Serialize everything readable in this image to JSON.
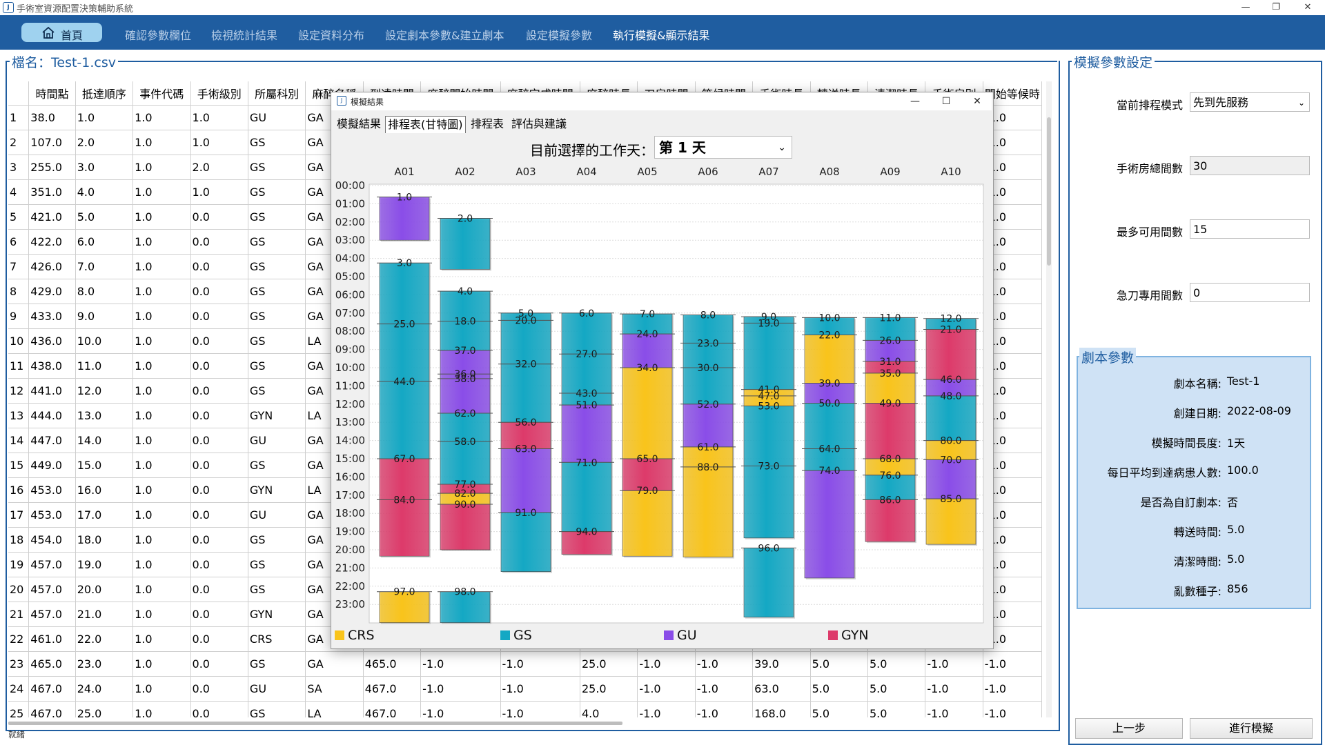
{
  "app": {
    "title": "手術室資源配置決策輔助系統",
    "icon": "J"
  },
  "window_controls": {
    "minimize": "—",
    "maximize": "❐",
    "close": "✕"
  },
  "nav": {
    "home": "首頁",
    "items": [
      "確認參數欄位",
      "檢視統計結果",
      "設定資料分布",
      "設定劇本參數&建立劇本",
      "設定模擬參數",
      "執行模擬&顯示結果"
    ],
    "active_index": 5
  },
  "left": {
    "file_title": "檔名：Test-1.csv",
    "status": "就緒"
  },
  "table": {
    "headers": [
      "",
      "時間點",
      "抵達順序",
      "事件代碼",
      "手術級別",
      "所屬科別",
      "麻醉名稱",
      "到達時間",
      "麻醉開始時間",
      "麻醉完成時間",
      "麻醉時長",
      "刀房時間",
      "等候時間",
      "手術時長",
      "轉送時長",
      "清潔時長",
      "手術房別",
      "開始等候時"
    ],
    "rows": [
      [
        "1",
        "38.0",
        "1.0",
        "1.0",
        "1.0",
        "GU",
        "GA",
        "",
        "",
        "",
        "",
        "",
        "",
        "",
        "",
        "",
        "",
        "-1.0"
      ],
      [
        "2",
        "107.0",
        "2.0",
        "1.0",
        "1.0",
        "GS",
        "GA",
        "",
        "",
        "",
        "",
        "",
        "",
        "",
        "",
        "",
        "",
        "-1.0"
      ],
      [
        "3",
        "255.0",
        "3.0",
        "1.0",
        "2.0",
        "GS",
        "GA",
        "",
        "",
        "",
        "",
        "",
        "",
        "",
        "",
        "",
        "",
        "-1.0"
      ],
      [
        "4",
        "351.0",
        "4.0",
        "1.0",
        "1.0",
        "GS",
        "GA",
        "",
        "",
        "",
        "",
        "",
        "",
        "",
        "",
        "",
        "",
        "-1.0"
      ],
      [
        "5",
        "421.0",
        "5.0",
        "1.0",
        "0.0",
        "GS",
        "GA",
        "",
        "",
        "",
        "",
        "",
        "",
        "",
        "",
        "",
        "",
        "-1.0"
      ],
      [
        "6",
        "422.0",
        "6.0",
        "1.0",
        "0.0",
        "GS",
        "GA",
        "",
        "",
        "",
        "",
        "",
        "",
        "",
        "",
        "",
        "",
        "-1.0"
      ],
      [
        "7",
        "426.0",
        "7.0",
        "1.0",
        "0.0",
        "GS",
        "GA",
        "",
        "",
        "",
        "",
        "",
        "",
        "",
        "",
        "",
        "",
        "-1.0"
      ],
      [
        "8",
        "429.0",
        "8.0",
        "1.0",
        "0.0",
        "GS",
        "GA",
        "",
        "",
        "",
        "",
        "",
        "",
        "",
        "",
        "",
        "",
        "-1.0"
      ],
      [
        "9",
        "433.0",
        "9.0",
        "1.0",
        "0.0",
        "GS",
        "GA",
        "",
        "",
        "",
        "",
        "",
        "",
        "",
        "",
        "",
        "",
        "-1.0"
      ],
      [
        "10",
        "436.0",
        "10.0",
        "1.0",
        "0.0",
        "GS",
        "LA",
        "",
        "",
        "",
        "",
        "",
        "",
        "",
        "",
        "",
        "",
        "-1.0"
      ],
      [
        "11",
        "438.0",
        "11.0",
        "1.0",
        "0.0",
        "GS",
        "GA",
        "",
        "",
        "",
        "",
        "",
        "",
        "",
        "",
        "",
        "",
        "-1.0"
      ],
      [
        "12",
        "441.0",
        "12.0",
        "1.0",
        "0.0",
        "GS",
        "GA",
        "",
        "",
        "",
        "",
        "",
        "",
        "",
        "",
        "",
        "",
        "-1.0"
      ],
      [
        "13",
        "444.0",
        "13.0",
        "1.0",
        "0.0",
        "GYN",
        "LA",
        "",
        "",
        "",
        "",
        "",
        "",
        "",
        "",
        "",
        "",
        "-1.0"
      ],
      [
        "14",
        "447.0",
        "14.0",
        "1.0",
        "0.0",
        "GU",
        "GA",
        "",
        "",
        "",
        "",
        "",
        "",
        "",
        "",
        "",
        "",
        "-1.0"
      ],
      [
        "15",
        "449.0",
        "15.0",
        "1.0",
        "0.0",
        "GS",
        "GA",
        "",
        "",
        "",
        "",
        "",
        "",
        "",
        "",
        "",
        "",
        "-1.0"
      ],
      [
        "16",
        "453.0",
        "16.0",
        "1.0",
        "0.0",
        "GYN",
        "LA",
        "",
        "",
        "",
        "",
        "",
        "",
        "",
        "",
        "",
        "",
        "-1.0"
      ],
      [
        "17",
        "453.0",
        "17.0",
        "1.0",
        "0.0",
        "GU",
        "GA",
        "",
        "",
        "",
        "",
        "",
        "",
        "",
        "",
        "",
        "",
        "-1.0"
      ],
      [
        "18",
        "454.0",
        "18.0",
        "1.0",
        "0.0",
        "GS",
        "GA",
        "",
        "",
        "",
        "",
        "",
        "",
        "",
        "",
        "",
        "",
        "-1.0"
      ],
      [
        "19",
        "457.0",
        "19.0",
        "1.0",
        "0.0",
        "GS",
        "GA",
        "",
        "",
        "",
        "",
        "",
        "",
        "",
        "",
        "",
        "",
        "-1.0"
      ],
      [
        "20",
        "457.0",
        "20.0",
        "1.0",
        "0.0",
        "GS",
        "GA",
        "",
        "",
        "",
        "",
        "",
        "",
        "",
        "",
        "",
        "",
        "-1.0"
      ],
      [
        "21",
        "457.0",
        "21.0",
        "1.0",
        "0.0",
        "GYN",
        "GA",
        "",
        "",
        "",
        "",
        "",
        "",
        "",
        "",
        "",
        "",
        "-1.0"
      ],
      [
        "22",
        "461.0",
        "22.0",
        "1.0",
        "0.0",
        "CRS",
        "GA",
        "",
        "",
        "",
        "",
        "",
        "",
        "",
        "",
        "",
        "",
        "-1.0"
      ],
      [
        "23",
        "465.0",
        "23.0",
        "1.0",
        "0.0",
        "GS",
        "GA",
        "465.0",
        "-1.0",
        "-1.0",
        "25.0",
        "-1.0",
        "-1.0",
        "39.0",
        "5.0",
        "5.0",
        "-1.0",
        "-1.0"
      ],
      [
        "24",
        "467.0",
        "24.0",
        "1.0",
        "0.0",
        "GU",
        "SA",
        "467.0",
        "-1.0",
        "-1.0",
        "25.0",
        "-1.0",
        "-1.0",
        "63.0",
        "5.0",
        "5.0",
        "-1.0",
        "-1.0"
      ],
      [
        "25",
        "467.0",
        "25.0",
        "1.0",
        "0.0",
        "GS",
        "LA",
        "467.0",
        "-1.0",
        "-1.0",
        "4.0",
        "-1.0",
        "-1.0",
        "168.0",
        "5.0",
        "5.0",
        "-1.0",
        "-1.0"
      ]
    ]
  },
  "right": {
    "title": "模擬參數設定",
    "mode_label": "當前排程模式",
    "mode_value": "先到先服務",
    "rooms_label": "手術房總間數",
    "rooms_value": "30",
    "max_label": "最多可用間數",
    "max_value": "15",
    "emerg_label": "急刀專用間數",
    "emerg_value": "0",
    "script_title": "劇本參數",
    "script": [
      {
        "label": "劇本名稱:",
        "value": "Test-1"
      },
      {
        "label": "創建日期:",
        "value": "2022-08-09"
      },
      {
        "label": "模擬時間長度:",
        "value": "1天"
      },
      {
        "label": "每日平均到達病患人數:",
        "value": "100.0"
      },
      {
        "label": "是否為自訂劇本:",
        "value": "否"
      },
      {
        "label": "轉送時間:",
        "value": "5.0"
      },
      {
        "label": "清潔時間:",
        "value": "5.0"
      },
      {
        "label": "亂數種子:",
        "value": "856"
      }
    ],
    "prev_button": "上一步",
    "run_button": "進行模擬"
  },
  "modal": {
    "title": "模擬結果",
    "tabs": [
      "模擬結果",
      "排程表(甘特圖)",
      "排程表",
      "評估與建議"
    ],
    "selected_tab": 1,
    "day_label": "目前選擇的工作天：",
    "day_value": "第 1 天"
  },
  "chart_data": {
    "type": "gantt",
    "rooms": [
      "A01",
      "A02",
      "A03",
      "A04",
      "A05",
      "A06",
      "A07",
      "A08",
      "A09",
      "A10"
    ],
    "y_ticks": [
      "00:00",
      "01:00",
      "02:00",
      "03:00",
      "04:00",
      "05:00",
      "06:00",
      "07:00",
      "08:00",
      "09:00",
      "10:00",
      "11:00",
      "12:00",
      "13:00",
      "14:00",
      "15:00",
      "16:00",
      "17:00",
      "18:00",
      "19:00",
      "20:00",
      "21:00",
      "22:00",
      "23:00"
    ],
    "ylim_hours": [
      0,
      24
    ],
    "grid": true,
    "legend_position": "bottom",
    "categories": [
      {
        "name": "CRS",
        "color": "#f9c41b"
      },
      {
        "name": "GS",
        "color": "#14a8c4"
      },
      {
        "name": "GU",
        "color": "#8a4de8"
      },
      {
        "name": "GYN",
        "color": "#dd3a6a"
      }
    ],
    "bars": [
      {
        "room": "A01",
        "label": "1.0",
        "cat": "GU",
        "start": 0.63,
        "end": 3.0
      },
      {
        "room": "A01",
        "label": "3.0",
        "cat": "GS",
        "start": 4.25,
        "end": 7.6
      },
      {
        "room": "A01",
        "label": "25.0",
        "cat": "GS",
        "start": 7.6,
        "end": 10.75
      },
      {
        "room": "A01",
        "label": "44.0",
        "cat": "GS",
        "start": 10.75,
        "end": 15.0
      },
      {
        "room": "A01",
        "label": "67.0",
        "cat": "GYN",
        "start": 15.0,
        "end": 17.25
      },
      {
        "room": "A01",
        "label": "84.0",
        "cat": "GYN",
        "start": 17.25,
        "end": 20.35
      },
      {
        "room": "A01",
        "label": "97.0",
        "cat": "CRS",
        "start": 22.3,
        "end": 24.0
      },
      {
        "room": "A02",
        "label": "2.0",
        "cat": "GS",
        "start": 1.8,
        "end": 4.6
      },
      {
        "room": "A02",
        "label": "4.0",
        "cat": "GS",
        "start": 5.8,
        "end": 7.45
      },
      {
        "room": "A02",
        "label": "18.0",
        "cat": "GS",
        "start": 7.45,
        "end": 9.05
      },
      {
        "room": "A02",
        "label": "37.0",
        "cat": "GU",
        "start": 9.05,
        "end": 10.35
      },
      {
        "room": "A02",
        "label": "36.0",
        "cat": "GU",
        "start": 10.35,
        "end": 10.6
      },
      {
        "room": "A02",
        "label": "38.0",
        "cat": "GU",
        "start": 10.6,
        "end": 12.5
      },
      {
        "room": "A02",
        "label": "62.0",
        "cat": "GS",
        "start": 12.5,
        "end": 14.05
      },
      {
        "room": "A02",
        "label": "58.0",
        "cat": "GS",
        "start": 14.05,
        "end": 16.4
      },
      {
        "room": "A02",
        "label": "77.0",
        "cat": "GYN",
        "start": 16.4,
        "end": 16.9
      },
      {
        "room": "A02",
        "label": "82.0",
        "cat": "CRS",
        "start": 16.9,
        "end": 17.5
      },
      {
        "room": "A02",
        "label": "90.0",
        "cat": "GYN",
        "start": 17.5,
        "end": 20.0
      },
      {
        "room": "A02",
        "label": "98.0",
        "cat": "GS",
        "start": 22.3,
        "end": 24.0
      },
      {
        "room": "A03",
        "label": "5.0",
        "cat": "GS",
        "start": 7.0,
        "end": 7.4
      },
      {
        "room": "A03",
        "label": "20.0",
        "cat": "GS",
        "start": 7.4,
        "end": 9.8
      },
      {
        "room": "A03",
        "label": "32.0",
        "cat": "GS",
        "start": 9.8,
        "end": 13.0
      },
      {
        "room": "A03",
        "label": "56.0",
        "cat": "GYN",
        "start": 13.0,
        "end": 14.45
      },
      {
        "room": "A03",
        "label": "63.0",
        "cat": "GU",
        "start": 14.45,
        "end": 17.95
      },
      {
        "room": "A03",
        "label": "91.0",
        "cat": "GS",
        "start": 17.95,
        "end": 21.2
      },
      {
        "room": "A04",
        "label": "6.0",
        "cat": "GS",
        "start": 7.0,
        "end": 9.25
      },
      {
        "room": "A04",
        "label": "27.0",
        "cat": "GS",
        "start": 9.25,
        "end": 11.4
      },
      {
        "room": "A04",
        "label": "43.0",
        "cat": "GS",
        "start": 11.4,
        "end": 12.05
      },
      {
        "room": "A04",
        "label": "51.0",
        "cat": "GU",
        "start": 12.05,
        "end": 15.2
      },
      {
        "room": "A04",
        "label": "71.0",
        "cat": "GS",
        "start": 15.2,
        "end": 19.0
      },
      {
        "room": "A04",
        "label": "94.0",
        "cat": "GYN",
        "start": 19.0,
        "end": 20.25
      },
      {
        "room": "A05",
        "label": "7.0",
        "cat": "GS",
        "start": 7.05,
        "end": 8.15
      },
      {
        "room": "A05",
        "label": "24.0",
        "cat": "GU",
        "start": 8.15,
        "end": 10.0
      },
      {
        "room": "A05",
        "label": "34.0",
        "cat": "CRS",
        "start": 10.0,
        "end": 15.0
      },
      {
        "room": "A05",
        "label": "65.0",
        "cat": "GYN",
        "start": 15.0,
        "end": 16.75
      },
      {
        "room": "A05",
        "label": "79.0",
        "cat": "CRS",
        "start": 16.75,
        "end": 20.35
      },
      {
        "room": "A06",
        "label": "8.0",
        "cat": "GS",
        "start": 7.1,
        "end": 8.65
      },
      {
        "room": "A06",
        "label": "23.0",
        "cat": "GS",
        "start": 8.65,
        "end": 10.0
      },
      {
        "room": "A06",
        "label": "30.0",
        "cat": "GS",
        "start": 10.0,
        "end": 12.0
      },
      {
        "room": "A06",
        "label": "52.0",
        "cat": "GU",
        "start": 12.0,
        "end": 14.35
      },
      {
        "room": "A06",
        "label": "61.0",
        "cat": "CRS",
        "start": 14.35,
        "end": 15.45
      },
      {
        "room": "A06",
        "label": "88.0",
        "cat": "CRS",
        "start": 15.45,
        "end": 20.4
      },
      {
        "room": "A07",
        "label": "9.0",
        "cat": "GS",
        "start": 7.2,
        "end": 7.55
      },
      {
        "room": "A07",
        "label": "19.0",
        "cat": "GS",
        "start": 7.55,
        "end": 11.2
      },
      {
        "room": "A07",
        "label": "41.0",
        "cat": "CRS",
        "start": 11.2,
        "end": 11.55
      },
      {
        "room": "A07",
        "label": "47.0",
        "cat": "CRS",
        "start": 11.55,
        "end": 12.1
      },
      {
        "room": "A07",
        "label": "53.0",
        "cat": "GS",
        "start": 12.1,
        "end": 15.4
      },
      {
        "room": "A07",
        "label": "73.0",
        "cat": "GS",
        "start": 15.4,
        "end": 19.35
      },
      {
        "room": "A07",
        "label": "96.0",
        "cat": "GS",
        "start": 19.9,
        "end": 23.7
      },
      {
        "room": "A08",
        "label": "10.0",
        "cat": "GS",
        "start": 7.25,
        "end": 8.2
      },
      {
        "room": "A08",
        "label": "22.0",
        "cat": "CRS",
        "start": 8.2,
        "end": 10.85
      },
      {
        "room": "A08",
        "label": "39.0",
        "cat": "GU",
        "start": 10.85,
        "end": 11.95
      },
      {
        "room": "A08",
        "label": "50.0",
        "cat": "GS",
        "start": 11.95,
        "end": 14.45
      },
      {
        "room": "A08",
        "label": "64.0",
        "cat": "GS",
        "start": 14.45,
        "end": 15.65
      },
      {
        "room": "A08",
        "label": "74.0",
        "cat": "GU",
        "start": 15.65,
        "end": 21.55
      },
      {
        "room": "A09",
        "label": "11.0",
        "cat": "GS",
        "start": 7.25,
        "end": 8.5
      },
      {
        "room": "A09",
        "label": "26.0",
        "cat": "GU",
        "start": 8.5,
        "end": 9.65
      },
      {
        "room": "A09",
        "label": "31.0",
        "cat": "GYN",
        "start": 9.65,
        "end": 10.3
      },
      {
        "room": "A09",
        "label": "35.0",
        "cat": "CRS",
        "start": 10.3,
        "end": 11.95
      },
      {
        "room": "A09",
        "label": "49.0",
        "cat": "GYN",
        "start": 11.95,
        "end": 15.0
      },
      {
        "room": "A09",
        "label": "68.0",
        "cat": "CRS",
        "start": 15.0,
        "end": 15.9
      },
      {
        "room": "A09",
        "label": "76.0",
        "cat": "GS",
        "start": 15.9,
        "end": 17.25
      },
      {
        "room": "A09",
        "label": "86.0",
        "cat": "GYN",
        "start": 17.25,
        "end": 19.55
      },
      {
        "room": "A10",
        "label": "12.0",
        "cat": "GS",
        "start": 7.3,
        "end": 7.9
      },
      {
        "room": "A10",
        "label": "21.0",
        "cat": "GYN",
        "start": 7.9,
        "end": 10.65
      },
      {
        "room": "A10",
        "label": "46.0",
        "cat": "GU",
        "start": 10.65,
        "end": 11.55
      },
      {
        "room": "A10",
        "label": "48.0",
        "cat": "GS",
        "start": 11.55,
        "end": 14.0
      },
      {
        "room": "A10",
        "label": "80.0",
        "cat": "CRS",
        "start": 14.0,
        "end": 15.05
      },
      {
        "room": "A10",
        "label": "70.0",
        "cat": "GU",
        "start": 15.05,
        "end": 17.2
      },
      {
        "room": "A10",
        "label": "85.0",
        "cat": "CRS",
        "start": 17.2,
        "end": 19.7
      }
    ]
  }
}
